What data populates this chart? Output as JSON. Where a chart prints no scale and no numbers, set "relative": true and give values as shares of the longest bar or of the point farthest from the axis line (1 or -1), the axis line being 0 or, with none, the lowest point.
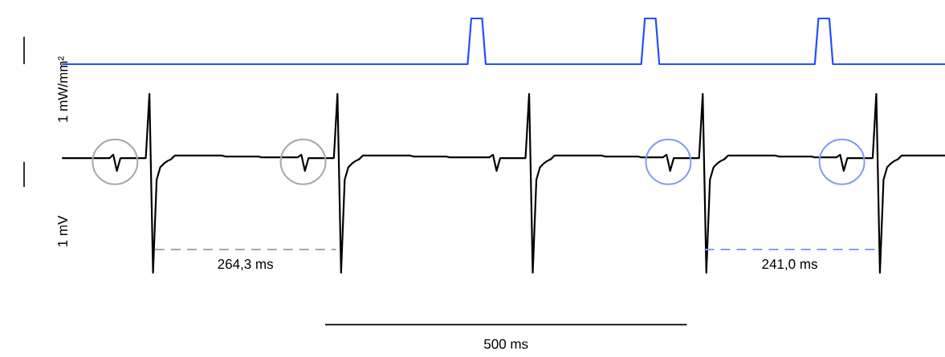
{
  "chart_data": [
    {
      "type": "line",
      "relative": true,
      "ylabel": "1 mW/mm²",
      "color": "#1f4fff",
      "categories": [
        null,
        null,
        null,
        null,
        null,
        null,
        null,
        null,
        null,
        null,
        null,
        null,
        null,
        null,
        null,
        null,
        null,
        null,
        null,
        null,
        null,
        null,
        null,
        null,
        null,
        null,
        null,
        null,
        null,
        null,
        null,
        null,
        null,
        null,
        null,
        null,
        null,
        null,
        null,
        null,
        null,
        null,
        null,
        null,
        null,
        null,
        null,
        null,
        null,
        null,
        null,
        null,
        null,
        null,
        null,
        null,
        null,
        null,
        null,
        null,
        null,
        null,
        null,
        null,
        null,
        null,
        null,
        null,
        null,
        null,
        null,
        null,
        null,
        null,
        null,
        null,
        null,
        null,
        null,
        null,
        null,
        null,
        null,
        null,
        null,
        null,
        null,
        null,
        null,
        null,
        null,
        null,
        null,
        null,
        null,
        null,
        null,
        null,
        null,
        null,
        null,
        null,
        null,
        null,
        null,
        null,
        null,
        null,
        null,
        null,
        null,
        null,
        null,
        null,
        null,
        null,
        null,
        null,
        null,
        null,
        null,
        null,
        null,
        null,
        null,
        null,
        null,
        null,
        null,
        null,
        null,
        null,
        null,
        null,
        null,
        null,
        null,
        null,
        null,
        null,
        null,
        null,
        null,
        null,
        null,
        null,
        null,
        null,
        null,
        null,
        null,
        null,
        null,
        null,
        null,
        null,
        null,
        null,
        null,
        null,
        null,
        null,
        null,
        null,
        null,
        null,
        null,
        null,
        null,
        null,
        null,
        null,
        null,
        null,
        null,
        null,
        null,
        null,
        null,
        null,
        null,
        null,
        null,
        null,
        null,
        null,
        null,
        null,
        null,
        null,
        null,
        null,
        null,
        null,
        null,
        null,
        null,
        null,
        null,
        null,
        null,
        null,
        null,
        null,
        null,
        null,
        null,
        null,
        null,
        null,
        null,
        null,
        null,
        null,
        null,
        null,
        null,
        null,
        null,
        null,
        null,
        null,
        null,
        null,
        null,
        null,
        null,
        null,
        null,
        null,
        null,
        null,
        null,
        null,
        null,
        null,
        null,
        null,
        null,
        null,
        null,
        null,
        null,
        null,
        null
      ],
      "values": [
        0,
        0,
        0,
        0,
        0,
        0,
        0,
        0,
        0,
        0,
        0,
        0,
        0,
        0,
        0,
        0,
        0,
        0,
        0,
        0,
        0,
        0,
        0,
        0,
        0,
        0,
        0,
        0,
        0,
        0,
        0,
        0,
        0,
        0,
        0,
        0,
        0,
        0,
        0,
        0,
        0,
        0,
        0,
        0,
        0,
        0,
        0,
        0,
        0,
        0,
        0,
        0,
        0,
        0,
        0,
        0,
        0,
        0,
        0,
        0,
        0,
        0,
        0,
        0,
        0,
        0,
        0,
        0,
        0,
        0,
        0,
        0,
        0,
        0,
        0,
        0,
        0,
        0,
        0,
        0,
        0,
        0,
        0,
        0,
        0,
        0,
        0,
        0,
        0,
        0,
        0,
        0,
        0,
        0,
        0,
        0,
        0,
        0,
        0,
        0,
        0,
        0,
        0,
        0,
        0,
        0,
        0,
        0,
        0,
        0,
        0,
        0,
        0,
        1,
        1,
        1,
        1,
        0,
        0,
        0,
        0,
        0,
        0,
        0,
        0,
        0,
        0,
        0,
        0,
        0,
        0,
        0,
        0,
        0,
        0,
        0,
        0,
        0,
        0,
        0,
        0,
        0,
        0,
        0,
        0,
        0,
        0,
        0,
        0,
        0,
        0,
        0,
        0,
        0,
        0,
        0,
        0,
        0,
        0,
        0,
        0,
        1,
        1,
        1,
        1,
        0,
        0,
        0,
        0,
        0,
        0,
        0,
        0,
        0,
        0,
        0,
        0,
        0,
        0,
        0,
        0,
        0,
        0,
        0,
        0,
        0,
        0,
        0,
        0,
        0,
        0,
        0,
        0,
        0,
        0,
        0,
        0,
        0,
        0,
        0,
        0,
        0,
        0,
        0,
        0,
        0,
        0,
        0,
        0,
        1,
        1,
        1,
        1,
        0,
        0,
        0,
        0,
        0,
        0,
        0,
        0,
        0,
        0,
        0,
        0,
        0,
        0,
        0,
        0,
        0,
        0,
        0,
        0,
        0,
        0,
        0,
        0,
        0,
        0,
        0,
        0,
        0,
        0,
        0,
        0
      ]
    },
    {
      "type": "line",
      "relative": true,
      "ylabel": "1 mV",
      "xlabel": "500 ms",
      "color": "#000000",
      "annotations": [
        "264,3 ms",
        "241,0 ms"
      ],
      "categories": [
        null,
        null,
        null,
        null,
        null,
        null,
        null,
        null,
        null,
        null,
        null,
        null,
        null,
        null,
        null,
        null,
        null,
        null,
        null,
        null,
        null,
        null,
        null,
        null,
        null,
        null,
        null,
        null,
        null,
        null,
        null,
        null,
        null,
        null,
        null,
        null,
        null,
        null,
        null,
        null,
        null,
        null,
        null,
        null,
        null,
        null,
        null,
        null,
        null,
        null,
        null,
        null,
        null,
        null,
        null,
        null,
        null,
        null,
        null,
        null,
        null,
        null,
        null,
        null,
        null,
        null,
        null,
        null,
        null,
        null,
        null,
        null,
        null,
        null,
        null,
        null,
        null,
        null,
        null,
        null,
        null,
        null,
        null,
        null,
        null,
        null,
        null,
        null,
        null,
        null,
        null,
        null,
        null,
        null,
        null,
        null,
        null,
        null,
        null,
        null,
        null,
        null,
        null,
        null,
        null,
        null,
        null,
        null,
        null,
        null,
        null,
        null,
        null,
        null,
        null,
        null,
        null,
        null,
        null,
        null,
        null,
        null,
        null,
        null,
        null,
        null,
        null,
        null,
        null,
        null,
        null,
        null,
        null,
        null,
        null,
        null,
        null,
        null,
        null,
        null,
        null,
        null,
        null,
        null,
        null,
        null,
        null,
        null,
        null,
        null,
        null,
        null,
        null,
        null,
        null,
        null,
        null,
        null,
        null,
        null,
        null,
        null,
        null,
        null,
        null,
        null,
        null,
        null,
        null,
        null,
        null,
        null,
        null,
        null,
        null,
        null,
        null,
        null,
        null,
        null,
        null,
        null,
        null,
        null,
        null,
        null,
        null,
        null,
        null,
        null,
        null,
        null,
        null,
        null,
        null,
        null,
        null,
        null,
        null,
        null,
        null,
        null,
        null,
        null,
        null,
        null,
        null,
        null,
        null,
        null,
        null,
        null,
        null,
        null,
        null,
        null,
        null,
        null,
        null,
        null,
        null,
        null,
        null,
        null,
        null,
        null,
        null,
        null,
        null,
        null,
        null,
        null,
        null,
        null,
        null,
        null,
        null,
        null,
        null,
        null,
        null,
        null,
        null,
        null,
        null
      ],
      "values": [
        0.641,
        0.641,
        0.641,
        0.641,
        0.641,
        0.641,
        0.641,
        0.641,
        0.641,
        0.641,
        0.641,
        0.641,
        0.641,
        0.641,
        0.66,
        0.57,
        0.641,
        0.641,
        0.641,
        0.641,
        0.641,
        0.641,
        0.641,
        0.641,
        1.0,
        0.0,
        0.52,
        0.59,
        0.61,
        0.625,
        0.635,
        0.655,
        0.655,
        0.655,
        0.655,
        0.655,
        0.655,
        0.655,
        0.655,
        0.655,
        0.655,
        0.655,
        0.655,
        0.655,
        0.655,
        0.65,
        0.65,
        0.65,
        0.65,
        0.65,
        0.65,
        0.65,
        0.65,
        0.65,
        0.65,
        0.645,
        0.645,
        0.645,
        0.645,
        0.645,
        0.645,
        0.645,
        0.645,
        0.645,
        0.645,
        0.645,
        0.66,
        0.57,
        0.641,
        0.641,
        0.641,
        0.641,
        0.641,
        0.641,
        0.641,
        0.641,
        1.0,
        0.0,
        0.52,
        0.59,
        0.61,
        0.625,
        0.635,
        0.655,
        0.655,
        0.655,
        0.655,
        0.655,
        0.655,
        0.655,
        0.655,
        0.655,
        0.655,
        0.655,
        0.655,
        0.655,
        0.655,
        0.65,
        0.65,
        0.65,
        0.65,
        0.65,
        0.65,
        0.65,
        0.65,
        0.65,
        0.65,
        0.645,
        0.645,
        0.645,
        0.645,
        0.645,
        0.645,
        0.645,
        0.645,
        0.645,
        0.645,
        0.645,
        0.645,
        0.66,
        0.57,
        0.641,
        0.641,
        0.641,
        0.641,
        0.641,
        0.641,
        0.641,
        0.641,
        1.0,
        0.0,
        0.52,
        0.59,
        0.61,
        0.625,
        0.635,
        0.655,
        0.655,
        0.655,
        0.655,
        0.655,
        0.655,
        0.655,
        0.655,
        0.655,
        0.655,
        0.655,
        0.655,
        0.655,
        0.655,
        0.65,
        0.65,
        0.65,
        0.65,
        0.65,
        0.65,
        0.65,
        0.65,
        0.65,
        0.65,
        0.645,
        0.645,
        0.645,
        0.645,
        0.645,
        0.645,
        0.645,
        0.66,
        0.57,
        0.641,
        0.641,
        0.641,
        0.641,
        0.641,
        0.641,
        0.641,
        0.641,
        1.0,
        0.0,
        0.52,
        0.59,
        0.61,
        0.625,
        0.635,
        0.655,
        0.655,
        0.655,
        0.655,
        0.655,
        0.655,
        0.655,
        0.655,
        0.655,
        0.655,
        0.655,
        0.655,
        0.655,
        0.655,
        0.65,
        0.65,
        0.65,
        0.65,
        0.65,
        0.65,
        0.65,
        0.65,
        0.65,
        0.65,
        0.645,
        0.645,
        0.645,
        0.645,
        0.645,
        0.645,
        0.645,
        0.66,
        0.57,
        0.641,
        0.641,
        0.641,
        0.641,
        0.641,
        0.641,
        0.641,
        0.641,
        1.0,
        0.0,
        0.52,
        0.59,
        0.61,
        0.625,
        0.635,
        0.655,
        0.655,
        0.655,
        0.655,
        0.655,
        0.655,
        0.655,
        0.655,
        0.655,
        0.655,
        0.655,
        0.655,
        0.655
      ]
    }
  ]
}
